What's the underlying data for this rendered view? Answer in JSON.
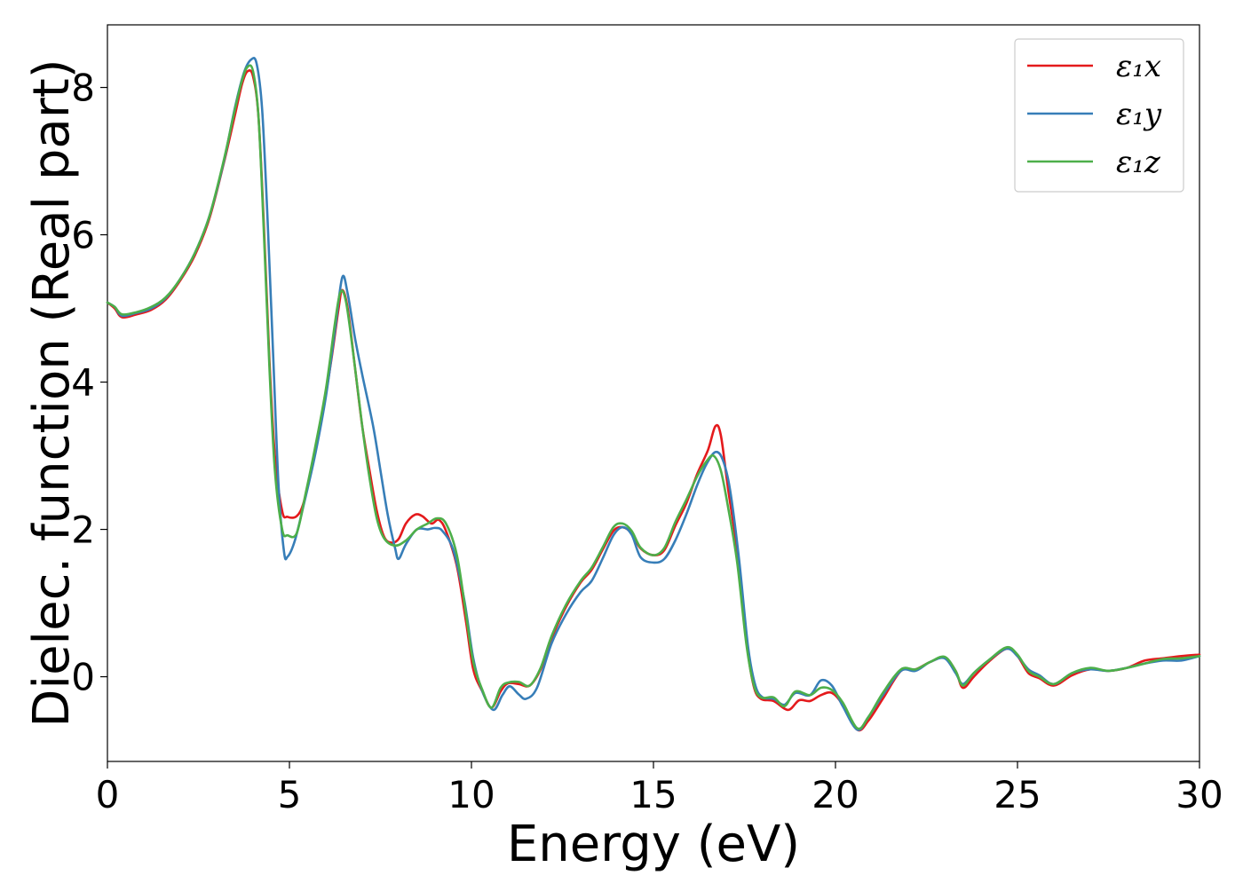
{
  "chart_data": {
    "type": "line",
    "title": "",
    "xlabel": "Energy (eV)",
    "ylabel": "Dielec. function (Real part)",
    "xlim": [
      0,
      30
    ],
    "ylim": [
      -1.15,
      8.85
    ],
    "xticks": [
      0,
      5,
      10,
      15,
      20,
      25,
      30
    ],
    "xtick_labels": [
      "0",
      "5",
      "10",
      "15",
      "20",
      "25",
      "30"
    ],
    "yticks": [
      0,
      2,
      4,
      6,
      8
    ],
    "ytick_labels": [
      "0",
      "2",
      "4",
      "6",
      "8"
    ],
    "grid": false,
    "legend_position": "top-right",
    "series": [
      {
        "name": "ε₁x",
        "color": "#e41a1c",
        "points": [
          [
            0,
            5.08
          ],
          [
            0.2,
            5.0
          ],
          [
            0.4,
            4.88
          ],
          [
            0.8,
            4.92
          ],
          [
            1.2,
            4.98
          ],
          [
            1.6,
            5.12
          ],
          [
            2.0,
            5.38
          ],
          [
            2.4,
            5.72
          ],
          [
            2.8,
            6.22
          ],
          [
            3.2,
            6.98
          ],
          [
            3.5,
            7.62
          ],
          [
            3.7,
            8.05
          ],
          [
            3.85,
            8.22
          ],
          [
            4.0,
            8.15
          ],
          [
            4.15,
            7.6
          ],
          [
            4.3,
            6.1
          ],
          [
            4.45,
            4.3
          ],
          [
            4.6,
            3.0
          ],
          [
            4.8,
            2.25
          ],
          [
            4.95,
            2.17
          ],
          [
            5.2,
            2.18
          ],
          [
            5.4,
            2.38
          ],
          [
            5.65,
            2.95
          ],
          [
            5.9,
            3.55
          ],
          [
            6.15,
            4.3
          ],
          [
            6.35,
            5.0
          ],
          [
            6.45,
            5.25
          ],
          [
            6.6,
            5.0
          ],
          [
            6.8,
            4.2
          ],
          [
            7.0,
            3.4
          ],
          [
            7.2,
            2.8
          ],
          [
            7.4,
            2.25
          ],
          [
            7.6,
            1.9
          ],
          [
            7.8,
            1.82
          ],
          [
            8.0,
            1.87
          ],
          [
            8.2,
            2.08
          ],
          [
            8.45,
            2.2
          ],
          [
            8.65,
            2.18
          ],
          [
            8.9,
            2.08
          ],
          [
            9.1,
            2.13
          ],
          [
            9.3,
            1.98
          ],
          [
            9.6,
            1.5
          ],
          [
            9.85,
            0.75
          ],
          [
            10.05,
            0.1
          ],
          [
            10.3,
            -0.2
          ],
          [
            10.55,
            -0.42
          ],
          [
            10.8,
            -0.2
          ],
          [
            11.0,
            -0.09
          ],
          [
            11.3,
            -0.1
          ],
          [
            11.6,
            -0.12
          ],
          [
            11.9,
            0.1
          ],
          [
            12.2,
            0.52
          ],
          [
            12.6,
            0.95
          ],
          [
            13.0,
            1.28
          ],
          [
            13.3,
            1.45
          ],
          [
            13.6,
            1.72
          ],
          [
            13.9,
            1.98
          ],
          [
            14.15,
            2.03
          ],
          [
            14.4,
            1.95
          ],
          [
            14.65,
            1.74
          ],
          [
            15.0,
            1.65
          ],
          [
            15.3,
            1.72
          ],
          [
            15.6,
            2.05
          ],
          [
            15.9,
            2.35
          ],
          [
            16.2,
            2.75
          ],
          [
            16.5,
            3.08
          ],
          [
            16.7,
            3.4
          ],
          [
            16.85,
            3.28
          ],
          [
            17.05,
            2.55
          ],
          [
            17.3,
            1.7
          ],
          [
            17.55,
            0.5
          ],
          [
            17.75,
            -0.12
          ],
          [
            17.95,
            -0.3
          ],
          [
            18.3,
            -0.33
          ],
          [
            18.7,
            -0.45
          ],
          [
            19.0,
            -0.32
          ],
          [
            19.3,
            -0.33
          ],
          [
            19.6,
            -0.25
          ],
          [
            19.9,
            -0.22
          ],
          [
            20.2,
            -0.38
          ],
          [
            20.6,
            -0.72
          ],
          [
            20.9,
            -0.6
          ],
          [
            21.3,
            -0.3
          ],
          [
            21.8,
            0.08
          ],
          [
            22.2,
            0.1
          ],
          [
            22.6,
            0.2
          ],
          [
            23.0,
            0.26
          ],
          [
            23.3,
            0.08
          ],
          [
            23.5,
            -0.15
          ],
          [
            23.8,
            0.0
          ],
          [
            24.2,
            0.2
          ],
          [
            24.7,
            0.38
          ],
          [
            25.0,
            0.28
          ],
          [
            25.3,
            0.05
          ],
          [
            25.6,
            -0.02
          ],
          [
            26.0,
            -0.12
          ],
          [
            26.5,
            0.02
          ],
          [
            27.0,
            0.1
          ],
          [
            27.5,
            0.08
          ],
          [
            28.0,
            0.12
          ],
          [
            28.5,
            0.22
          ],
          [
            29.0,
            0.25
          ],
          [
            29.5,
            0.28
          ],
          [
            30.0,
            0.3
          ]
        ]
      },
      {
        "name": "ε₁y",
        "color": "#377eb8",
        "points": [
          [
            0,
            5.08
          ],
          [
            0.2,
            5.02
          ],
          [
            0.4,
            4.9
          ],
          [
            0.8,
            4.94
          ],
          [
            1.2,
            5.0
          ],
          [
            1.6,
            5.14
          ],
          [
            2.0,
            5.4
          ],
          [
            2.4,
            5.75
          ],
          [
            2.8,
            6.25
          ],
          [
            3.2,
            7.0
          ],
          [
            3.5,
            7.72
          ],
          [
            3.75,
            8.2
          ],
          [
            3.95,
            8.38
          ],
          [
            4.1,
            8.32
          ],
          [
            4.25,
            7.7
          ],
          [
            4.4,
            6.2
          ],
          [
            4.55,
            4.4
          ],
          [
            4.7,
            2.6
          ],
          [
            4.85,
            1.7
          ],
          [
            4.95,
            1.63
          ],
          [
            5.15,
            1.85
          ],
          [
            5.4,
            2.35
          ],
          [
            5.7,
            3.0
          ],
          [
            6.0,
            3.8
          ],
          [
            6.25,
            4.7
          ],
          [
            6.45,
            5.42
          ],
          [
            6.6,
            5.2
          ],
          [
            6.8,
            4.6
          ],
          [
            7.0,
            4.1
          ],
          [
            7.3,
            3.4
          ],
          [
            7.5,
            2.8
          ],
          [
            7.7,
            2.2
          ],
          [
            7.9,
            1.75
          ],
          [
            8.0,
            1.6
          ],
          [
            8.2,
            1.8
          ],
          [
            8.5,
            2.0
          ],
          [
            8.8,
            2.0
          ],
          [
            9.0,
            2.02
          ],
          [
            9.2,
            1.98
          ],
          [
            9.5,
            1.72
          ],
          [
            9.8,
            1.05
          ],
          [
            10.05,
            0.25
          ],
          [
            10.3,
            -0.2
          ],
          [
            10.6,
            -0.45
          ],
          [
            10.85,
            -0.25
          ],
          [
            11.05,
            -0.13
          ],
          [
            11.3,
            -0.24
          ],
          [
            11.5,
            -0.3
          ],
          [
            11.8,
            -0.15
          ],
          [
            12.2,
            0.45
          ],
          [
            12.6,
            0.85
          ],
          [
            13.0,
            1.15
          ],
          [
            13.3,
            1.3
          ],
          [
            13.6,
            1.6
          ],
          [
            13.9,
            1.92
          ],
          [
            14.15,
            2.03
          ],
          [
            14.4,
            1.93
          ],
          [
            14.65,
            1.62
          ],
          [
            15.0,
            1.55
          ],
          [
            15.3,
            1.6
          ],
          [
            15.6,
            1.85
          ],
          [
            15.9,
            2.2
          ],
          [
            16.2,
            2.6
          ],
          [
            16.45,
            2.88
          ],
          [
            16.7,
            3.05
          ],
          [
            16.9,
            2.95
          ],
          [
            17.1,
            2.55
          ],
          [
            17.35,
            1.6
          ],
          [
            17.6,
            0.4
          ],
          [
            17.8,
            -0.12
          ],
          [
            18.0,
            -0.28
          ],
          [
            18.3,
            -0.3
          ],
          [
            18.6,
            -0.38
          ],
          [
            18.9,
            -0.22
          ],
          [
            19.3,
            -0.25
          ],
          [
            19.6,
            -0.05
          ],
          [
            19.9,
            -0.12
          ],
          [
            20.2,
            -0.4
          ],
          [
            20.6,
            -0.72
          ],
          [
            20.9,
            -0.55
          ],
          [
            21.3,
            -0.25
          ],
          [
            21.8,
            0.08
          ],
          [
            22.2,
            0.08
          ],
          [
            22.6,
            0.2
          ],
          [
            23.0,
            0.25
          ],
          [
            23.3,
            0.05
          ],
          [
            23.5,
            -0.1
          ],
          [
            23.8,
            0.05
          ],
          [
            24.2,
            0.22
          ],
          [
            24.7,
            0.38
          ],
          [
            25.0,
            0.28
          ],
          [
            25.3,
            0.1
          ],
          [
            25.6,
            0.02
          ],
          [
            26.0,
            -0.1
          ],
          [
            26.5,
            0.05
          ],
          [
            27.0,
            0.1
          ],
          [
            27.5,
            0.08
          ],
          [
            28.0,
            0.12
          ],
          [
            28.5,
            0.18
          ],
          [
            29.0,
            0.22
          ],
          [
            29.5,
            0.22
          ],
          [
            30.0,
            0.28
          ]
        ]
      },
      {
        "name": "ε₁z",
        "color": "#4daf4a",
        "points": [
          [
            0,
            5.08
          ],
          [
            0.2,
            5.02
          ],
          [
            0.4,
            4.92
          ],
          [
            0.8,
            4.95
          ],
          [
            1.2,
            5.02
          ],
          [
            1.6,
            5.15
          ],
          [
            2.0,
            5.4
          ],
          [
            2.4,
            5.75
          ],
          [
            2.8,
            6.25
          ],
          [
            3.2,
            7.02
          ],
          [
            3.5,
            7.7
          ],
          [
            3.7,
            8.1
          ],
          [
            3.85,
            8.28
          ],
          [
            4.0,
            8.22
          ],
          [
            4.15,
            7.6
          ],
          [
            4.3,
            6.0
          ],
          [
            4.45,
            4.2
          ],
          [
            4.6,
            2.8
          ],
          [
            4.8,
            2.0
          ],
          [
            4.95,
            1.92
          ],
          [
            5.2,
            1.95
          ],
          [
            5.45,
            2.5
          ],
          [
            5.7,
            3.1
          ],
          [
            6.0,
            3.9
          ],
          [
            6.25,
            4.8
          ],
          [
            6.4,
            5.22
          ],
          [
            6.55,
            5.1
          ],
          [
            6.75,
            4.4
          ],
          [
            7.0,
            3.4
          ],
          [
            7.2,
            2.7
          ],
          [
            7.4,
            2.15
          ],
          [
            7.6,
            1.88
          ],
          [
            7.9,
            1.78
          ],
          [
            8.2,
            1.85
          ],
          [
            8.5,
            2.0
          ],
          [
            8.8,
            2.08
          ],
          [
            9.05,
            2.15
          ],
          [
            9.3,
            2.08
          ],
          [
            9.6,
            1.65
          ],
          [
            9.85,
            0.85
          ],
          [
            10.05,
            0.2
          ],
          [
            10.3,
            -0.18
          ],
          [
            10.55,
            -0.42
          ],
          [
            10.8,
            -0.15
          ],
          [
            11.0,
            -0.08
          ],
          [
            11.3,
            -0.07
          ],
          [
            11.6,
            -0.12
          ],
          [
            11.9,
            0.12
          ],
          [
            12.2,
            0.55
          ],
          [
            12.6,
            0.98
          ],
          [
            13.0,
            1.3
          ],
          [
            13.3,
            1.48
          ],
          [
            13.6,
            1.75
          ],
          [
            13.9,
            2.03
          ],
          [
            14.15,
            2.08
          ],
          [
            14.4,
            1.98
          ],
          [
            14.65,
            1.75
          ],
          [
            15.0,
            1.65
          ],
          [
            15.3,
            1.75
          ],
          [
            15.6,
            2.1
          ],
          [
            15.9,
            2.4
          ],
          [
            16.2,
            2.72
          ],
          [
            16.45,
            2.92
          ],
          [
            16.65,
            3.0
          ],
          [
            16.85,
            2.8
          ],
          [
            17.05,
            2.3
          ],
          [
            17.3,
            1.55
          ],
          [
            17.55,
            0.45
          ],
          [
            17.75,
            -0.1
          ],
          [
            17.95,
            -0.28
          ],
          [
            18.3,
            -0.28
          ],
          [
            18.6,
            -0.4
          ],
          [
            18.9,
            -0.2
          ],
          [
            19.3,
            -0.25
          ],
          [
            19.6,
            -0.15
          ],
          [
            19.9,
            -0.18
          ],
          [
            20.2,
            -0.35
          ],
          [
            20.6,
            -0.7
          ],
          [
            20.9,
            -0.55
          ],
          [
            21.3,
            -0.22
          ],
          [
            21.8,
            0.1
          ],
          [
            22.2,
            0.1
          ],
          [
            22.6,
            0.2
          ],
          [
            23.0,
            0.27
          ],
          [
            23.3,
            0.08
          ],
          [
            23.5,
            -0.12
          ],
          [
            23.8,
            0.05
          ],
          [
            24.2,
            0.22
          ],
          [
            24.7,
            0.4
          ],
          [
            25.0,
            0.3
          ],
          [
            25.3,
            0.08
          ],
          [
            25.6,
            0.0
          ],
          [
            26.0,
            -0.1
          ],
          [
            26.5,
            0.05
          ],
          [
            27.0,
            0.12
          ],
          [
            27.5,
            0.08
          ],
          [
            28.0,
            0.12
          ],
          [
            28.5,
            0.18
          ],
          [
            29.0,
            0.24
          ],
          [
            29.5,
            0.25
          ],
          [
            30.0,
            0.28
          ]
        ]
      }
    ]
  }
}
